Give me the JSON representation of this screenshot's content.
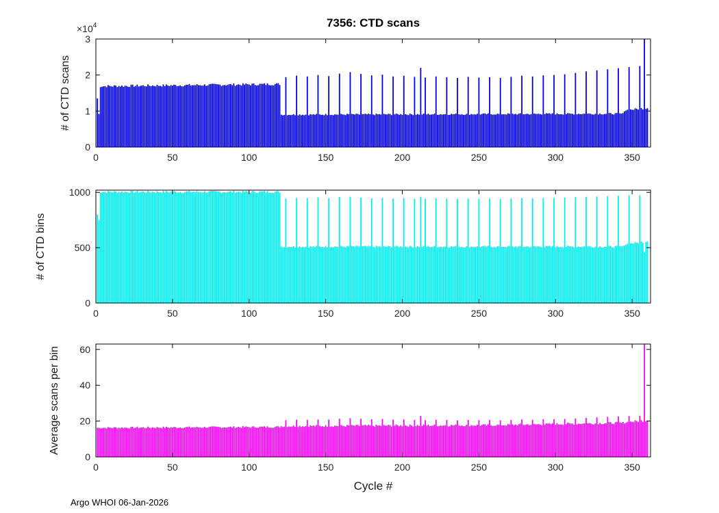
{
  "figure": {
    "title": "7356: CTD scans",
    "xlabel": "Cycle #",
    "footer": "Argo WHOI 06-Jan-2026",
    "background": "#ffffff",
    "axis_color": "#000000",
    "tick_color": "#262626"
  },
  "chart_data": [
    {
      "name": "ctd-scans",
      "type": "bar",
      "title": "7356: CTD scans",
      "ylabel": "# of CTD scans",
      "bar_color": "#0000ee",
      "ylim": [
        0,
        30000
      ],
      "yticks": [
        0,
        10000,
        20000,
        30000
      ],
      "ytick_labels": [
        "0",
        "1",
        "2",
        "3"
      ],
      "y_scale": {
        "prefix": "×10",
        "exp": "4"
      },
      "xlim": [
        0,
        362
      ],
      "xticks": [
        0,
        50,
        100,
        150,
        200,
        250,
        300,
        350
      ],
      "grid": false,
      "legend": null,
      "cycles": 360,
      "runs": [
        {
          "from": 1,
          "to": 1,
          "base": 13500
        },
        {
          "from": 2,
          "to": 2,
          "base": 9200
        },
        {
          "from": 3,
          "to": 120,
          "base": 16900,
          "slope": 5,
          "jitter": 350
        },
        {
          "from": 121,
          "to": 344,
          "base": 9000,
          "slope": 1.2,
          "jitter": 220
        },
        {
          "from": 345,
          "to": 360,
          "base": 10200,
          "slope": 45,
          "jitter": 300
        }
      ],
      "spikes": [
        {
          "cycle": 124,
          "value": 19400
        },
        {
          "cycle": 131,
          "value": 19800
        },
        {
          "cycle": 138,
          "value": 19600
        },
        {
          "cycle": 145,
          "value": 20000
        },
        {
          "cycle": 152,
          "value": 19700
        },
        {
          "cycle": 159,
          "value": 20400
        },
        {
          "cycle": 166,
          "value": 20800
        },
        {
          "cycle": 173,
          "value": 20300
        },
        {
          "cycle": 180,
          "value": 19900
        },
        {
          "cycle": 187,
          "value": 20100
        },
        {
          "cycle": 194,
          "value": 19600
        },
        {
          "cycle": 201,
          "value": 19800
        },
        {
          "cycle": 208,
          "value": 19500
        },
        {
          "cycle": 212,
          "value": 22000
        },
        {
          "cycle": 215,
          "value": 19300
        },
        {
          "cycle": 222,
          "value": 19600
        },
        {
          "cycle": 229,
          "value": 19400
        },
        {
          "cycle": 236,
          "value": 19200
        },
        {
          "cycle": 243,
          "value": 19500
        },
        {
          "cycle": 250,
          "value": 19300
        },
        {
          "cycle": 257,
          "value": 19400
        },
        {
          "cycle": 264,
          "value": 19200
        },
        {
          "cycle": 271,
          "value": 19500
        },
        {
          "cycle": 278,
          "value": 19800
        },
        {
          "cycle": 285,
          "value": 19600
        },
        {
          "cycle": 292,
          "value": 19900
        },
        {
          "cycle": 299,
          "value": 20000
        },
        {
          "cycle": 306,
          "value": 20200
        },
        {
          "cycle": 313,
          "value": 20600
        },
        {
          "cycle": 320,
          "value": 21000
        },
        {
          "cycle": 327,
          "value": 21300
        },
        {
          "cycle": 334,
          "value": 21600
        },
        {
          "cycle": 341,
          "value": 21900
        },
        {
          "cycle": 348,
          "value": 22200
        },
        {
          "cycle": 355,
          "value": 22500
        },
        {
          "cycle": 358,
          "value": 30000
        }
      ]
    },
    {
      "name": "ctd-bins",
      "type": "bar",
      "ylabel": "# of CTD bins",
      "bar_color": "#00f0f0",
      "ylim": [
        0,
        1020
      ],
      "yticks": [
        0,
        500,
        1000
      ],
      "ytick_labels": [
        "0",
        "500",
        "1000"
      ],
      "y_scale": null,
      "xlim": [
        0,
        362
      ],
      "xticks": [
        0,
        50,
        100,
        150,
        200,
        250,
        300,
        350
      ],
      "grid": false,
      "legend": null,
      "cycles": 360,
      "runs": [
        {
          "from": 1,
          "to": 1,
          "base": 800
        },
        {
          "from": 2,
          "to": 2,
          "base": 750
        },
        {
          "from": 3,
          "to": 120,
          "base": 1005,
          "slope": 0,
          "jitter": 10
        },
        {
          "from": 121,
          "to": 344,
          "base": 510,
          "slope": 0,
          "jitter": 8
        },
        {
          "from": 345,
          "to": 360,
          "base": 530,
          "slope": 2,
          "jitter": 10
        }
      ],
      "spikes": [
        {
          "cycle": 124,
          "value": 945
        },
        {
          "cycle": 131,
          "value": 950
        },
        {
          "cycle": 138,
          "value": 948
        },
        {
          "cycle": 145,
          "value": 955
        },
        {
          "cycle": 152,
          "value": 947
        },
        {
          "cycle": 159,
          "value": 958
        },
        {
          "cycle": 166,
          "value": 960
        },
        {
          "cycle": 173,
          "value": 952
        },
        {
          "cycle": 180,
          "value": 946
        },
        {
          "cycle": 187,
          "value": 950
        },
        {
          "cycle": 194,
          "value": 944
        },
        {
          "cycle": 201,
          "value": 948
        },
        {
          "cycle": 208,
          "value": 943
        },
        {
          "cycle": 212,
          "value": 960
        },
        {
          "cycle": 215,
          "value": 942
        },
        {
          "cycle": 222,
          "value": 946
        },
        {
          "cycle": 229,
          "value": 944
        },
        {
          "cycle": 236,
          "value": 941
        },
        {
          "cycle": 243,
          "value": 945
        },
        {
          "cycle": 250,
          "value": 943
        },
        {
          "cycle": 257,
          "value": 944
        },
        {
          "cycle": 264,
          "value": 941
        },
        {
          "cycle": 271,
          "value": 945
        },
        {
          "cycle": 278,
          "value": 948
        },
        {
          "cycle": 285,
          "value": 946
        },
        {
          "cycle": 292,
          "value": 949
        },
        {
          "cycle": 299,
          "value": 950
        },
        {
          "cycle": 306,
          "value": 952
        },
        {
          "cycle": 313,
          "value": 956
        },
        {
          "cycle": 320,
          "value": 960
        },
        {
          "cycle": 327,
          "value": 963
        },
        {
          "cycle": 334,
          "value": 966
        },
        {
          "cycle": 341,
          "value": 969
        },
        {
          "cycle": 348,
          "value": 972
        },
        {
          "cycle": 355,
          "value": 975
        },
        {
          "cycle": 358,
          "value": 460
        }
      ]
    },
    {
      "name": "avg-scans-per-bin",
      "type": "bar",
      "ylabel": "Average scans per bin",
      "bar_color": "#ff00ff",
      "ylim": [
        0,
        63
      ],
      "yticks": [
        0,
        20,
        40,
        60
      ],
      "ytick_labels": [
        "0",
        "20",
        "40",
        "60"
      ],
      "y_scale": null,
      "xlim": [
        0,
        362
      ],
      "xticks": [
        0,
        50,
        100,
        150,
        200,
        250,
        300,
        350
      ],
      "grid": false,
      "legend": null,
      "cycles": 360,
      "runs": [
        {
          "from": 1,
          "to": 120,
          "base": 16.3,
          "slope": 0.004,
          "jitter": 0.5
        },
        {
          "from": 121,
          "to": 260,
          "base": 17.2,
          "slope": 0.004,
          "jitter": 0.6
        },
        {
          "from": 261,
          "to": 344,
          "base": 17.8,
          "slope": 0.015,
          "jitter": 0.6
        },
        {
          "from": 345,
          "to": 360,
          "base": 19.3,
          "slope": 0.08,
          "jitter": 0.7
        }
      ],
      "spikes": [
        {
          "cycle": 124,
          "value": 20.5
        },
        {
          "cycle": 131,
          "value": 20.8
        },
        {
          "cycle": 138,
          "value": 20.7
        },
        {
          "cycle": 145,
          "value": 20.9
        },
        {
          "cycle": 152,
          "value": 20.8
        },
        {
          "cycle": 159,
          "value": 21.3
        },
        {
          "cycle": 166,
          "value": 21.6
        },
        {
          "cycle": 173,
          "value": 21.3
        },
        {
          "cycle": 180,
          "value": 21.0
        },
        {
          "cycle": 187,
          "value": 21.2
        },
        {
          "cycle": 194,
          "value": 20.8
        },
        {
          "cycle": 201,
          "value": 20.9
        },
        {
          "cycle": 208,
          "value": 20.7
        },
        {
          "cycle": 212,
          "value": 22.9
        },
        {
          "cycle": 215,
          "value": 20.5
        },
        {
          "cycle": 222,
          "value": 20.8
        },
        {
          "cycle": 229,
          "value": 20.6
        },
        {
          "cycle": 236,
          "value": 20.4
        },
        {
          "cycle": 243,
          "value": 20.6
        },
        {
          "cycle": 250,
          "value": 20.5
        },
        {
          "cycle": 257,
          "value": 20.6
        },
        {
          "cycle": 264,
          "value": 20.4
        },
        {
          "cycle": 271,
          "value": 20.6
        },
        {
          "cycle": 278,
          "value": 20.9
        },
        {
          "cycle": 285,
          "value": 20.7
        },
        {
          "cycle": 292,
          "value": 21.0
        },
        {
          "cycle": 299,
          "value": 21.0
        },
        {
          "cycle": 306,
          "value": 21.2
        },
        {
          "cycle": 313,
          "value": 21.5
        },
        {
          "cycle": 320,
          "value": 21.8
        },
        {
          "cycle": 327,
          "value": 22.1
        },
        {
          "cycle": 334,
          "value": 22.4
        },
        {
          "cycle": 341,
          "value": 22.6
        },
        {
          "cycle": 348,
          "value": 22.8
        },
        {
          "cycle": 355,
          "value": 23.0
        },
        {
          "cycle": 358,
          "value": 65.2
        }
      ]
    }
  ]
}
